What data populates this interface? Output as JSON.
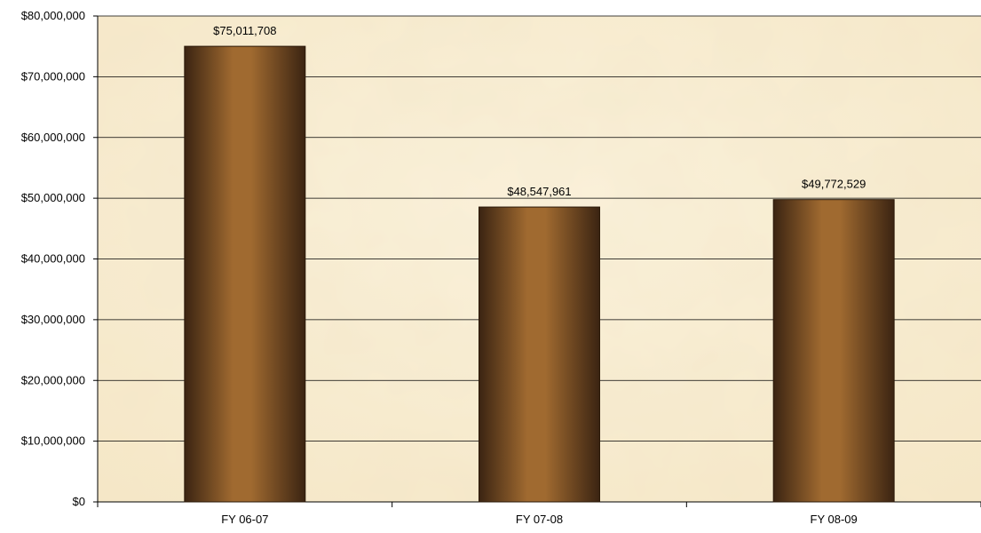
{
  "chart_data": {
    "type": "bar",
    "title": "",
    "xlabel": "",
    "ylabel": "",
    "categories": [
      "FY 06-07",
      "FY 07-08",
      "FY 08-09"
    ],
    "values": [
      75011708,
      48547961,
      49772529
    ],
    "data_labels": [
      "$75,011,708",
      "$48,547,961",
      "$49,772,529"
    ],
    "ylim": [
      0,
      80000000
    ],
    "y_ticks": [
      0,
      10000000,
      20000000,
      30000000,
      40000000,
      50000000,
      60000000,
      70000000,
      80000000
    ],
    "y_tick_labels": [
      "$0",
      "$10,000,000",
      "$20,000,000",
      "$30,000,000",
      "$40,000,000",
      "$50,000,000",
      "$60,000,000",
      "$70,000,000",
      "$80,000,000"
    ],
    "grid": true,
    "legend": "none",
    "colors": {
      "bar_mid": "#a06a30",
      "bar_dark": "#3b2412",
      "bar_edge": "#2a1808",
      "plot_background": "#f6e8c8",
      "plot_background_light": "#fbf2dc",
      "gridline": "#000000"
    }
  }
}
